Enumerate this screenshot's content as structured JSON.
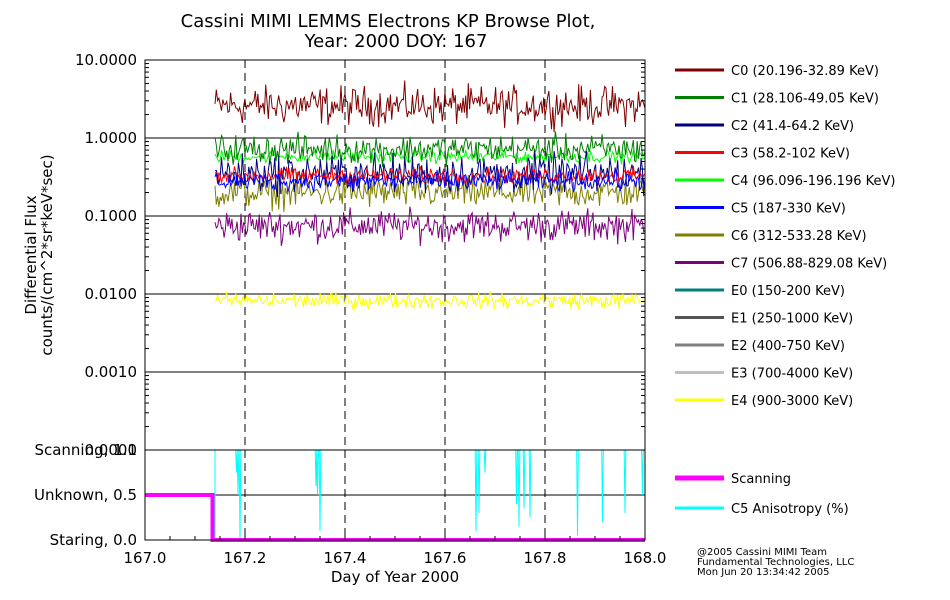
{
  "title_line1": "Cassini MIMI LEMMS Electrons KP Browse Plot,",
  "title_line2": "Year: 2000 DOY: 167",
  "footer": {
    "line1": "@2005 Cassini MIMI Team",
    "line2": "Fundamental Technologies, LLC",
    "line3": "Mon Jun 20 13:34:42 2005"
  },
  "chart_data": [
    {
      "type": "line",
      "panel": "flux",
      "ylabel_line1": "Differential Flux",
      "ylabel_line2": "counts/(cm^2*sr*keV*sec)",
      "yscale": "log",
      "ylim": [
        0.0001,
        10
      ],
      "y_ticks": [
        10,
        1,
        0.1,
        0.01,
        0.001,
        0.0001
      ],
      "y_tick_labels": [
        "10.0000",
        "1.0000",
        "0.1000",
        "0.0100",
        "0.0010",
        "0.0001"
      ],
      "xlim": [
        167.0,
        168.0
      ],
      "grid": true,
      "legend_position": "right",
      "series": [
        {
          "name": "C0 (20.196-32.89 KeV)",
          "color": "#7f0000",
          "x_start": 167.14,
          "x_end": 168.0,
          "level": 2.6,
          "scatter": 0.12
        },
        {
          "name": "C1 (28.106-49.05 KeV)",
          "color": "#007f00",
          "x_start": 167.14,
          "x_end": 168.0,
          "level": 0.72,
          "scatter": 0.09
        },
        {
          "name": "C2 (41.4-64.2 KeV)",
          "color": "#00007f",
          "x_start": 167.14,
          "x_end": 168.0,
          "level": 0.35,
          "scatter": 0.12
        },
        {
          "name": "C3 (58.2-102 KeV)",
          "color": "#ff0000",
          "x_start": 167.14,
          "x_end": 168.0,
          "level": 0.33,
          "scatter": 0.05
        },
        {
          "name": "C4 (96.096-196.196 KeV)",
          "color": "#00ff00",
          "x_start": 167.14,
          "x_end": 168.0,
          "level": 0.58,
          "scatter": 0.04
        },
        {
          "name": "C5 (187-330 KeV)",
          "color": "#0000ff",
          "x_start": 167.14,
          "x_end": 168.0,
          "level": 0.28,
          "scatter": 0.06
        },
        {
          "name": "C6 (312-533.28 KeV)",
          "color": "#7f7f00",
          "x_start": 167.14,
          "x_end": 168.0,
          "level": 0.2,
          "scatter": 0.1
        },
        {
          "name": "C7 (506.88-829.08 KeV)",
          "color": "#7f007f",
          "x_start": 167.14,
          "x_end": 168.0,
          "level": 0.075,
          "scatter": 0.1
        },
        {
          "name": "E0 (150-200 KeV)",
          "color": "#007f7f"
        },
        {
          "name": "E1 (250-1000 KeV)",
          "color": "#545454"
        },
        {
          "name": "E2 (400-750 KeV)",
          "color": "#7f7f7f"
        },
        {
          "name": "E3 (700-4000 KeV)",
          "color": "#bfbfbf"
        },
        {
          "name": "E4 (900-3000 KeV)",
          "color": "#ffff00",
          "x_start": 167.14,
          "x_end": 168.0,
          "level": 0.0082,
          "scatter": 0.05
        }
      ]
    },
    {
      "type": "line",
      "panel": "mode",
      "y_ticks": [
        1.0,
        0.5,
        0.0
      ],
      "y_tick_labels": [
        "Scanning, 1.0",
        "Unknown, 0.5",
        "Staring, 0.0"
      ],
      "ylim": [
        0.0,
        1.0
      ],
      "xlim": [
        167.0,
        168.0
      ],
      "xlabel": "Day of Year 2000",
      "x_ticks": [
        167.0,
        167.2,
        167.4,
        167.6,
        167.8,
        168.0
      ],
      "x_tick_labels": [
        "167.0",
        "167.2",
        "167.4",
        "167.6",
        "167.8",
        "168.0"
      ],
      "series": [
        {
          "name": "Scanning",
          "color": "#ff00ff",
          "points": [
            [
              167.0,
              0.5
            ],
            [
              167.135,
              0.5
            ],
            [
              167.135,
              0.0
            ],
            [
              168.0,
              0.0
            ]
          ]
        },
        {
          "name": "C5 Anisotropy (%)",
          "color": "#00ffff",
          "baseline": 1.0,
          "x_start": 167.14,
          "x_end": 168.0,
          "dips": [
            {
              "x": 167.183,
              "y": 0.75
            },
            {
              "x": 167.186,
              "y": 0.5
            },
            {
              "x": 167.19,
              "y": 0.0
            },
            {
              "x": 167.342,
              "y": 0.6
            },
            {
              "x": 167.345,
              "y": 0.5
            },
            {
              "x": 167.35,
              "y": 0.1
            },
            {
              "x": 167.662,
              "y": 0.1
            },
            {
              "x": 167.668,
              "y": 0.3
            },
            {
              "x": 167.68,
              "y": 0.75
            },
            {
              "x": 167.743,
              "y": 0.4
            },
            {
              "x": 167.748,
              "y": 0.15
            },
            {
              "x": 167.758,
              "y": 0.35
            },
            {
              "x": 167.77,
              "y": 0.25
            },
            {
              "x": 167.865,
              "y": 0.05
            },
            {
              "x": 167.915,
              "y": 0.2
            },
            {
              "x": 167.96,
              "y": 0.3
            },
            {
              "x": 167.995,
              "y": 0.5
            }
          ]
        }
      ]
    }
  ]
}
